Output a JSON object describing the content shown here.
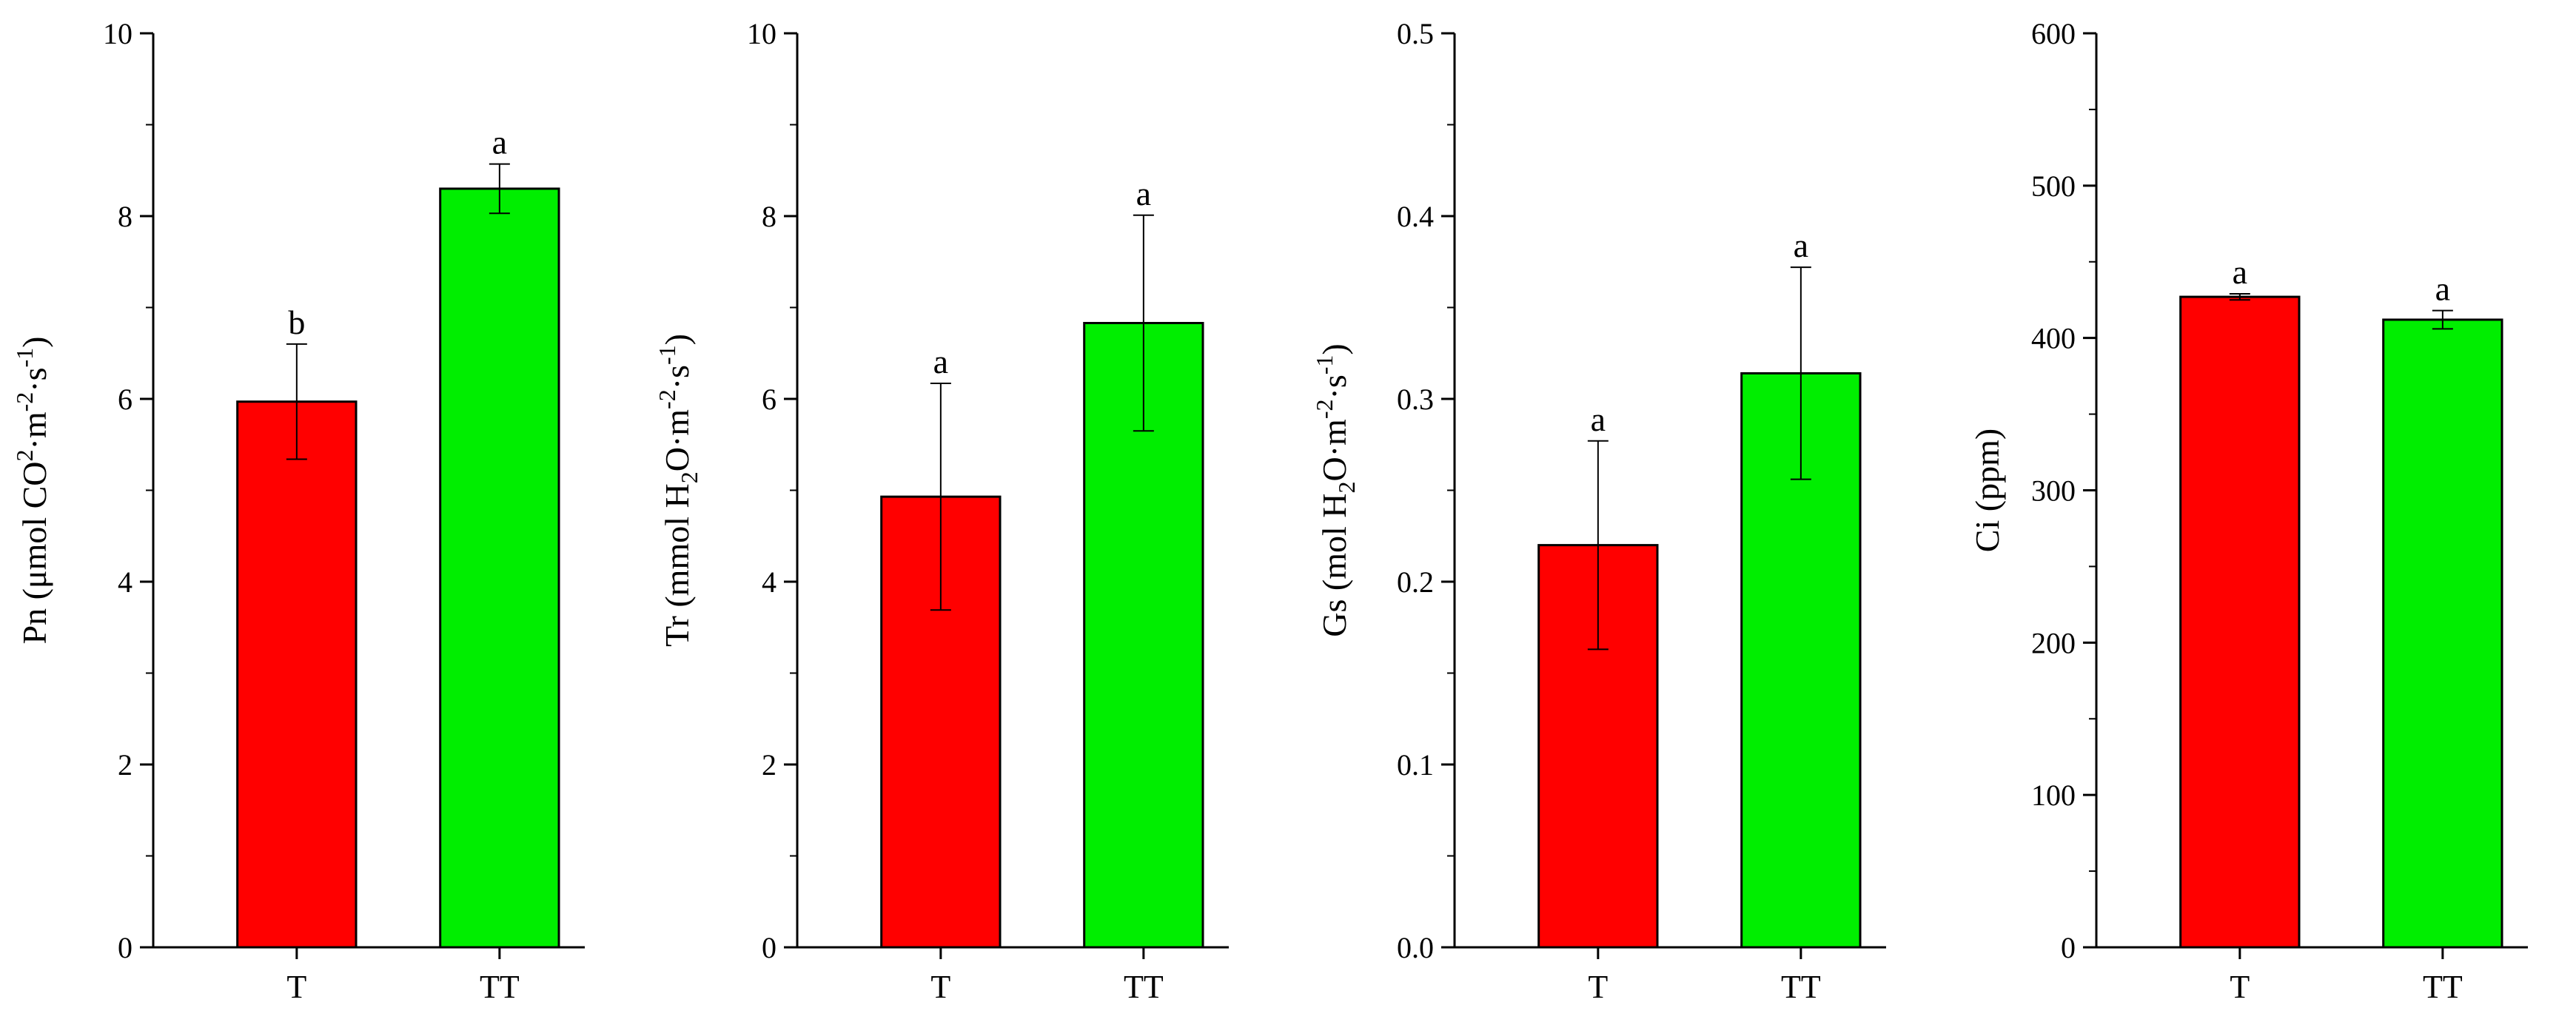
{
  "colors": {
    "T": "#ff0000",
    "TT": "#00ee00"
  },
  "chart_data": [
    {
      "type": "bar",
      "ylabel": {
        "prefix": "Pn (μmol CO",
        "sup1": "2",
        "mid1": "·m",
        "sup2": "-2",
        "mid2": "·s",
        "sup3": "-1",
        "suffix": ")"
      },
      "xlabel": "",
      "categories": [
        "T",
        "TT"
      ],
      "values": [
        5.97,
        8.3
      ],
      "errors": [
        0.63,
        0.27
      ],
      "significance": [
        "b",
        "a"
      ],
      "ylim": [
        0,
        10
      ],
      "yticks": [
        0,
        2,
        4,
        6,
        8,
        10
      ],
      "yticklabels": [
        "0",
        "2",
        "4",
        "6",
        "8",
        "10"
      ],
      "minor_per_major": 1,
      "grid": false
    },
    {
      "type": "bar",
      "ylabel": {
        "prefix": "Tr (mmol H",
        "sub1": "2",
        "mid1": "O·m",
        "sup2": "-2",
        "mid2": "·s",
        "sup3": "-1",
        "suffix": ")"
      },
      "xlabel": "",
      "categories": [
        "T",
        "TT"
      ],
      "values": [
        4.93,
        6.83
      ],
      "errors": [
        1.24,
        1.18
      ],
      "significance": [
        "a",
        "a"
      ],
      "ylim": [
        0,
        10
      ],
      "yticks": [
        0,
        2,
        4,
        6,
        8,
        10
      ],
      "yticklabels": [
        "0",
        "2",
        "4",
        "6",
        "8",
        "10"
      ],
      "minor_per_major": 1,
      "grid": false
    },
    {
      "type": "bar",
      "ylabel": {
        "prefix": "Gs (mol H",
        "sub1": "2",
        "mid1": "O·m",
        "sup2": "-2",
        "mid2": "·s",
        "sup3": "-1",
        "suffix": ")"
      },
      "xlabel": "",
      "categories": [
        "T",
        "TT"
      ],
      "values": [
        0.22,
        0.314
      ],
      "errors": [
        0.057,
        0.058
      ],
      "significance": [
        "a",
        "a"
      ],
      "ylim": [
        0,
        0.5
      ],
      "yticks": [
        0,
        0.1,
        0.2,
        0.3,
        0.4,
        0.5
      ],
      "yticklabels": [
        "0.0",
        "0.1",
        "0.2",
        "0.3",
        "0.4",
        "0.5"
      ],
      "minor_per_major": 1,
      "grid": false
    },
    {
      "type": "bar",
      "ylabel": {
        "prefix": "Ci (ppm)"
      },
      "xlabel": "",
      "categories": [
        "T",
        "TT"
      ],
      "values": [
        427,
        412
      ],
      "errors": [
        2,
        6
      ],
      "significance": [
        "a",
        "a"
      ],
      "ylim": [
        0,
        600
      ],
      "yticks": [
        0,
        100,
        200,
        300,
        400,
        500,
        600
      ],
      "yticklabels": [
        "0",
        "100",
        "200",
        "300",
        "400",
        "500",
        "600"
      ],
      "minor_per_major": 1,
      "grid": false
    }
  ]
}
